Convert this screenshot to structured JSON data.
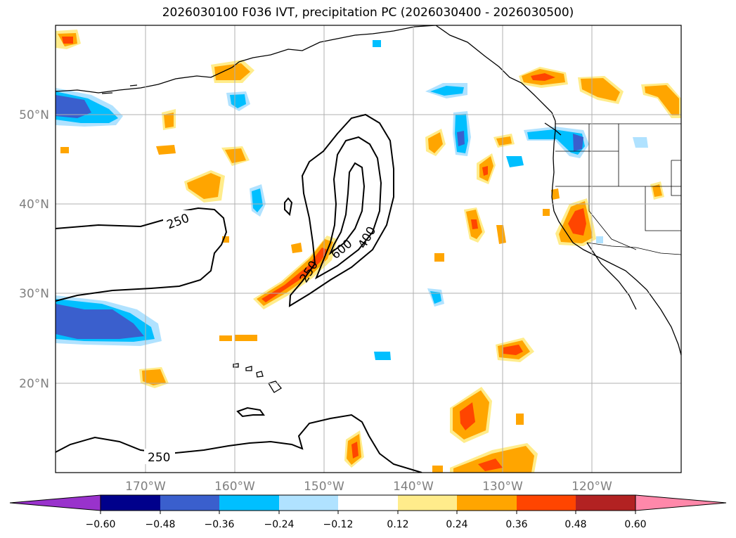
{
  "title": "2026030100 F036 IVT, precipitation PC (2026030400 - 2026030500)",
  "latitude_labels": [
    "50°N",
    "40°N",
    "30°N",
    "20°N"
  ],
  "longitude_labels": [
    "170°W",
    "160°W",
    "150°W",
    "140°W",
    "130°W",
    "120°W"
  ],
  "ivt_contour_labels": [
    "250",
    "250",
    "250",
    "400",
    "600"
  ],
  "colorbar": {
    "tick_labels": [
      "−0.60",
      "−0.48",
      "−0.36",
      "−0.24",
      "−0.12",
      "0.12",
      "0.24",
      "0.36",
      "0.48",
      "0.60"
    ],
    "colors": [
      "#9932cc",
      "#00008b",
      "#3a5fcd",
      "#00bfff",
      "#b0e2ff",
      "#ffffff",
      "#ffec8b",
      "#ffa500",
      "#ff4500",
      "#b22222",
      "#ff88aa"
    ]
  },
  "colors": {
    "neg_strong": "#3a5fcd",
    "neg_mid": "#00bfff",
    "neg_weak": "#b0e2ff",
    "pos_weak": "#ffec8b",
    "pos_mid": "#ffa500",
    "pos_strong": "#ff4500"
  }
}
